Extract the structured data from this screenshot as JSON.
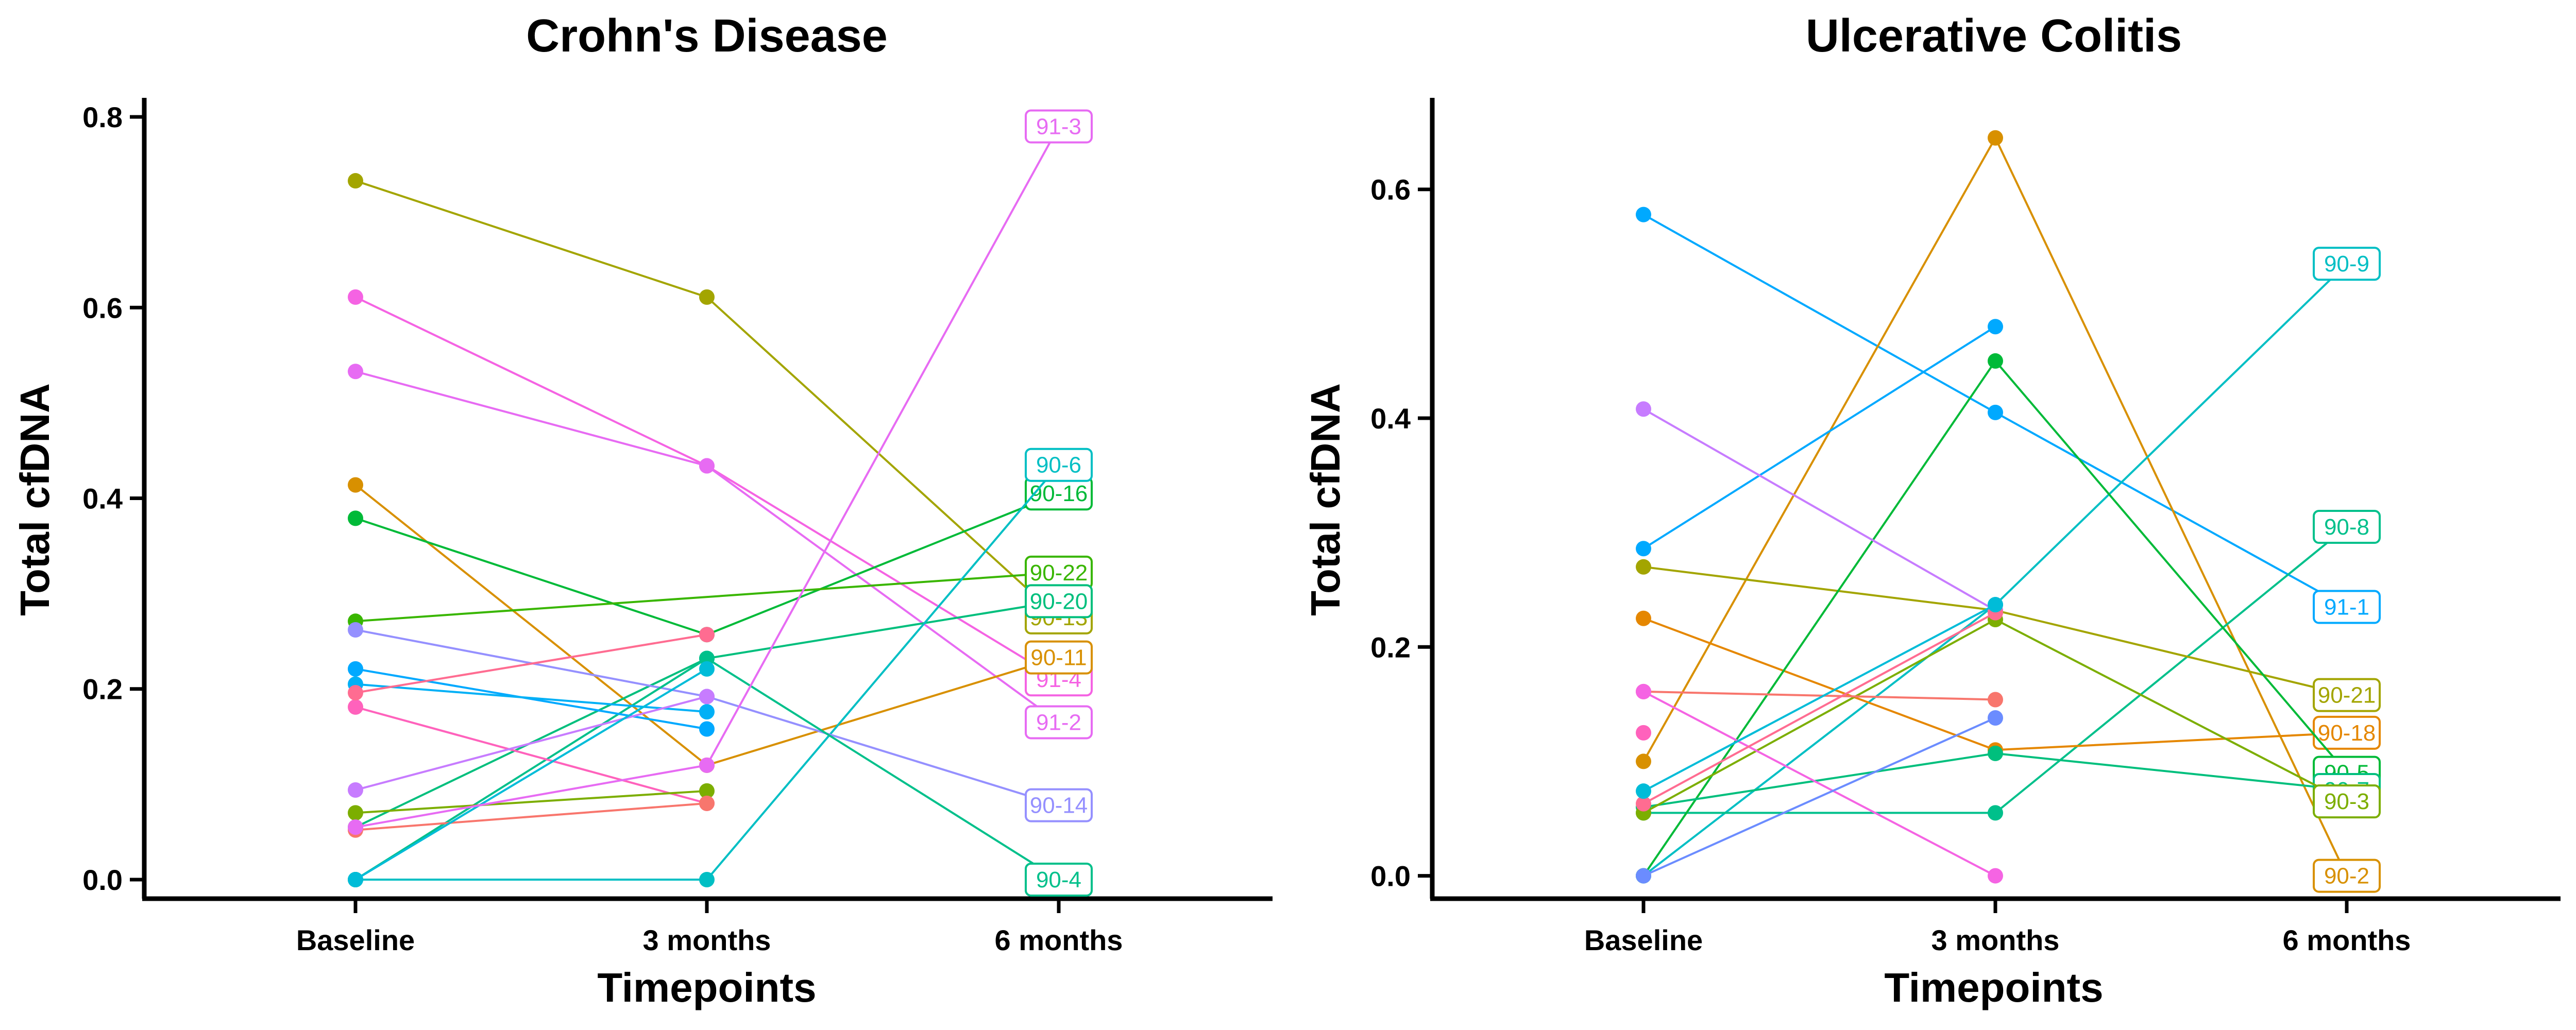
{
  "chart_data": [
    {
      "type": "line",
      "title": "Crohn's Disease",
      "xlabel": "Timepoints",
      "ylabel": "Total cfDNA",
      "categories": [
        "Baseline",
        "3 months",
        "6 months"
      ],
      "ylim": [
        -0.02,
        0.82
      ],
      "yticks": [
        "0.0",
        "0.2",
        "0.4",
        "0.6",
        "0.8"
      ],
      "series": [
        {
          "name": "90-13",
          "values": [
            0.733,
            0.611,
            0.275
          ],
          "color": "#A3A500"
        },
        {
          "name": "91-4",
          "values": [
            0.611,
            0.434,
            0.21
          ],
          "color": "#F563E3"
        },
        {
          "name": "91-2",
          "values": [
            0.533,
            0.434,
            0.165
          ],
          "color": "#E76BF3"
        },
        {
          "name": "90-11",
          "values": [
            0.414,
            0.12,
            0.233
          ],
          "color": "#D89000"
        },
        {
          "name": "90-16",
          "values": [
            0.379,
            0.257,
            0.405
          ],
          "color": "#00BA38"
        },
        {
          "name": "90-22",
          "values": [
            0.271,
            null,
            0.322
          ],
          "color": "#39B600"
        },
        {
          "name": "90-20",
          "values": [
            0.055,
            0.232,
            0.292
          ],
          "color": "#00BF7D"
        },
        {
          "name": "90-6",
          "values": [
            0.0,
            0.0,
            0.435
          ],
          "color": "#00BFC4"
        },
        {
          "name": "90-14",
          "values": [
            0.262,
            0.192,
            0.078
          ],
          "color": "#9590FF"
        },
        {
          "name": "90-4",
          "values": [
            0.0,
            0.232,
            0.0
          ],
          "color": "#00C08B"
        },
        {
          "name": "",
          "values": [
            0.221,
            0.158,
            null
          ],
          "color": "#00A9FF"
        },
        {
          "name": "",
          "values": [
            0.205,
            0.176,
            null
          ],
          "color": "#00B0F6"
        },
        {
          "name": "",
          "values": [
            0.181,
            0.08,
            null
          ],
          "color": "#FF62BC"
        },
        {
          "name": "",
          "values": [
            0.094,
            0.192,
            null
          ],
          "color": "#C77CFF"
        },
        {
          "name": "",
          "values": [
            0.07,
            0.093,
            null
          ],
          "color": "#7CAE00"
        },
        {
          "name": "",
          "values": [
            0.052,
            0.08,
            null
          ],
          "color": "#F8766D"
        },
        {
          "name": "",
          "values": [
            0.196,
            0.257,
            null
          ],
          "color": "#FF6C91"
        },
        {
          "name": "",
          "values": [
            0.0,
            0.221,
            null
          ],
          "color": "#00BCD8"
        },
        {
          "name": "91-3",
          "values": [
            0.055,
            0.12,
            0.79
          ],
          "color": "#E76BF3"
        }
      ]
    },
    {
      "type": "line",
      "title": "Ulcerative Colitis",
      "xlabel": "Timepoints",
      "ylabel": "Total cfDNA",
      "categories": [
        "Baseline",
        "3 months",
        "6 months"
      ],
      "ylim": [
        -0.02,
        0.68
      ],
      "yticks": [
        "0.0",
        "0.2",
        "0.4",
        "0.6"
      ],
      "series": [
        {
          "name": "91-1",
          "values": [
            0.578,
            0.405,
            0.235
          ],
          "color": "#00A9FF"
        },
        {
          "name": "90-2",
          "values": [
            0.1,
            0.645,
            0.0
          ],
          "color": "#D89000"
        },
        {
          "name": "90-9",
          "values": [
            0.0,
            0.237,
            0.535
          ],
          "color": "#00BFC4"
        },
        {
          "name": "90-8",
          "values": [
            0.055,
            0.055,
            0.305
          ],
          "color": "#00C08B"
        },
        {
          "name": "90-21",
          "values": [
            0.27,
            0.232,
            0.158
          ],
          "color": "#A3A500"
        },
        {
          "name": "90-18",
          "values": [
            0.225,
            0.11,
            0.125
          ],
          "color": "#E58700"
        },
        {
          "name": "90-5",
          "values": [
            0.0,
            0.45,
            0.09
          ],
          "color": "#00BA38"
        },
        {
          "name": "90-7",
          "values": [
            0.06,
            0.107,
            0.075
          ],
          "color": "#00BF7D"
        },
        {
          "name": "90-3",
          "values": [
            0.055,
            0.224,
            0.065
          ],
          "color": "#7CAE00"
        },
        {
          "name": "",
          "values": [
            0.286,
            0.48,
            null
          ],
          "color": "#00A9FF"
        },
        {
          "name": "",
          "values": [
            0.408,
            0.232,
            null
          ],
          "color": "#C77CFF"
        },
        {
          "name": "",
          "values": [
            0.161,
            0.154,
            null
          ],
          "color": "#F8766D"
        },
        {
          "name": "",
          "values": [
            0.161,
            0.0,
            null
          ],
          "color": "#F564E3"
        },
        {
          "name": "",
          "values": [
            0.125,
            null,
            null
          ],
          "color": "#FF62BC"
        },
        {
          "name": "",
          "values": [
            0.0,
            0.138,
            null
          ],
          "color": "#6B8CFF"
        },
        {
          "name": "",
          "values": [
            0.063,
            0.23,
            null
          ],
          "color": "#FF6C91"
        },
        {
          "name": "",
          "values": [
            0.074,
            0.237,
            null
          ],
          "color": "#00BCD8"
        }
      ]
    }
  ]
}
